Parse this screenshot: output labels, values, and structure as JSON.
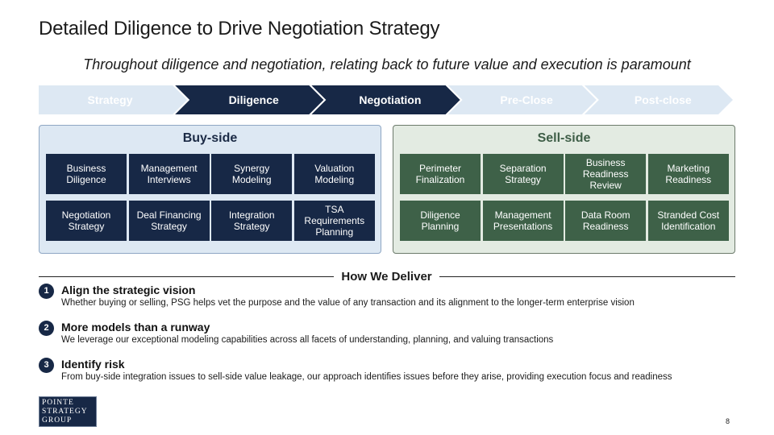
{
  "title": "Detailed Diligence to Drive Negotiation Strategy",
  "subtitle": "Throughout diligence and negotiation, relating back to future value and execution is paramount",
  "phases": [
    {
      "label": "Strategy",
      "active": false
    },
    {
      "label": "Diligence",
      "active": true
    },
    {
      "label": "Negotiation",
      "active": true
    },
    {
      "label": "Pre-Close",
      "active": false
    },
    {
      "label": "Post-close",
      "active": false
    }
  ],
  "colors": {
    "navy": "#172846",
    "green": "#3e6148",
    "light_chevron": "#dde8f3",
    "light_chevron_text": "#ffffff"
  },
  "buy_side": {
    "title": "Buy-side",
    "items": [
      "Business Diligence",
      "Management Interviews",
      "Synergy Modeling",
      "Valuation Modeling",
      "Negotiation Strategy",
      "Deal Financing Strategy",
      "Integration Strategy",
      "TSA Requirements Planning"
    ]
  },
  "sell_side": {
    "title": "Sell-side",
    "items": [
      "Perimeter Finalization",
      "Separation Strategy",
      "Business Readiness Review",
      "Marketing Readiness",
      "Diligence Planning",
      "Management Presentations",
      "Data Room Readiness",
      "Stranded Cost Identification"
    ]
  },
  "how_we_deliver": {
    "title": "How We Deliver",
    "items": [
      {
        "number": "1",
        "heading": "Align the strategic vision",
        "text": "Whether buying or selling, PSG helps vet the purpose and the value of any transaction and its alignment to the longer-term enterprise vision"
      },
      {
        "number": "2",
        "heading": "More models than a runway",
        "text": "We leverage our exceptional modeling capabilities across all facets of understanding, planning, and valuing transactions"
      },
      {
        "number": "3",
        "heading": "Identify risk",
        "text": "From buy-side integration issues to sell-side value leakage, our approach identifies issues before they arise, providing execution focus and readiness"
      }
    ]
  },
  "logo": [
    "POINTE",
    "STRATEGY",
    "GROUP"
  ],
  "page_number": "8"
}
